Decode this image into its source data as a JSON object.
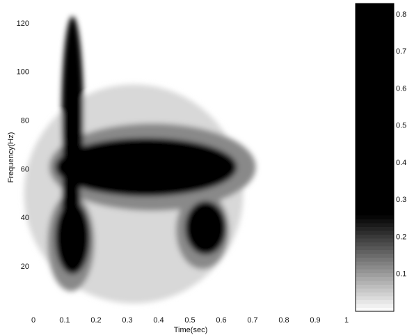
{
  "chart_data": {
    "type": "heatmap",
    "xlabel": "Time(sec)",
    "ylabel": "Frequency(Hz)",
    "xlim": [
      0,
      1
    ],
    "ylim": [
      4,
      126
    ],
    "xticks": [
      0,
      0.1,
      0.2,
      0.3,
      0.4,
      0.5,
      0.6,
      0.7,
      0.8,
      0.9,
      1
    ],
    "yticks": [
      20,
      40,
      60,
      80,
      100,
      120
    ],
    "colorbar": {
      "lim": [
        0,
        0.83
      ],
      "ticks": [
        0.1,
        0.2,
        0.3,
        0.4,
        0.5,
        0.6,
        0.7,
        0.8
      ]
    },
    "regions": [
      {
        "t": 0.32,
        "f": 50,
        "width": 0.7,
        "height": 90,
        "intensity": 0.04
      },
      {
        "t": 0.38,
        "f": 61,
        "width": 0.66,
        "height": 36,
        "intensity": 0.12
      },
      {
        "t": 0.12,
        "f": 30,
        "width": 0.15,
        "height": 40,
        "intensity": 0.12
      },
      {
        "t": 0.54,
        "f": 35,
        "width": 0.17,
        "height": 32,
        "intensity": 0.12
      },
      {
        "t": 0.125,
        "f": 82,
        "width": 0.07,
        "height": 82,
        "intensity": 0.3
      },
      {
        "t": 0.36,
        "f": 61,
        "width": 0.58,
        "height": 24,
        "intensity": 0.8
      },
      {
        "t": 0.125,
        "f": 32,
        "width": 0.11,
        "height": 30,
        "intensity": 0.8
      },
      {
        "t": 0.55,
        "f": 36,
        "width": 0.13,
        "height": 22,
        "intensity": 0.8
      },
      {
        "t": 0.12,
        "f": 45,
        "width": 0.06,
        "height": 50,
        "intensity": 0.8
      }
    ]
  }
}
